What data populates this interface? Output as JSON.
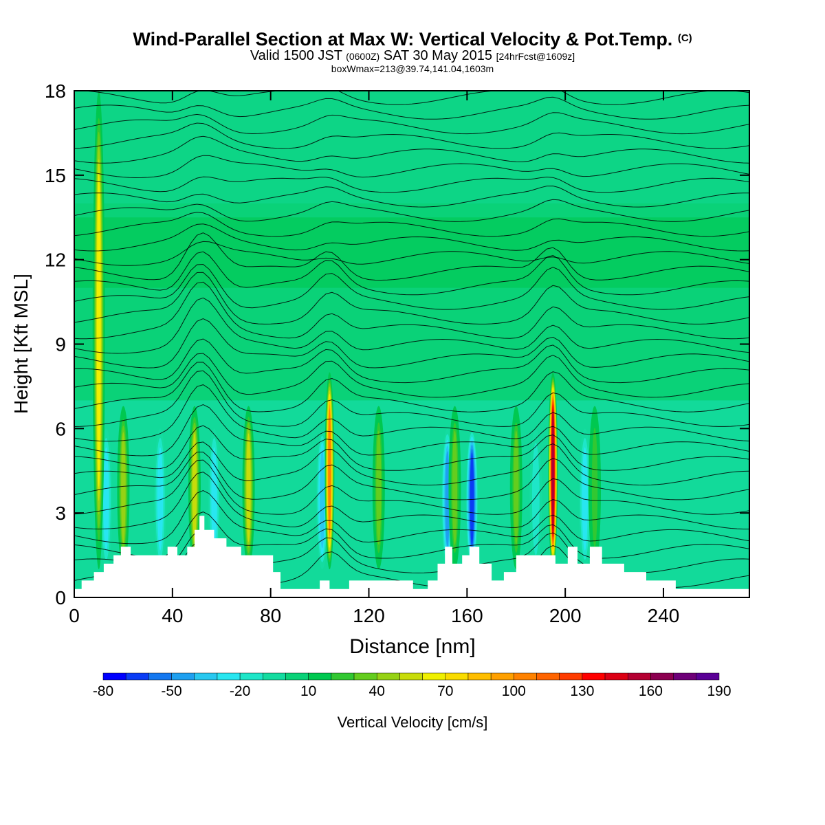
{
  "header": {
    "title": "Wind-Parallel Section at Max W: Vertical Velocity & Pot.Temp.",
    "title_mark": "(C)",
    "subtitle_main1": "Valid 1500 JST",
    "subtitle_z": "(0600Z)",
    "subtitle_main2": "SAT 30 May 2015",
    "subtitle_fcst": "[24hrFcst@1609z]",
    "subtitle2": "boxWmax=213@39.74,141.04,1603m"
  },
  "chart_data": {
    "type": "heatmap",
    "xlabel": "Distance [nm]",
    "ylabel": "Height [Kft MSL]",
    "xlim": [
      0,
      275
    ],
    "ylim": [
      0,
      18
    ],
    "xticks": [
      "0",
      "40",
      "80",
      "120",
      "160",
      "200",
      "240"
    ],
    "yticks": [
      "0",
      "3",
      "6",
      "9",
      "12",
      "15",
      "18"
    ],
    "colorbar": {
      "label": "Vertical Velocity [cm/s]",
      "tick_labels": [
        "-80",
        "-50",
        "-20",
        "10",
        "40",
        "70",
        "100",
        "130",
        "160",
        "190"
      ],
      "levels": [
        -80,
        -70,
        -60,
        -50,
        -40,
        -30,
        -20,
        -10,
        0,
        10,
        20,
        30,
        40,
        50,
        60,
        70,
        80,
        90,
        100,
        110,
        120,
        130,
        140,
        150,
        160,
        170,
        180,
        190
      ],
      "colors": [
        "#0000ff",
        "#0a3cf5",
        "#1478f0",
        "#1ea0f0",
        "#28c8f0",
        "#28e6f0",
        "#1ee6c8",
        "#14dca0",
        "#0ad278",
        "#00c850",
        "#32c832",
        "#64cd1e",
        "#96d214",
        "#c8dc0a",
        "#f0f000",
        "#fadc00",
        "#ffbe00",
        "#ffa000",
        "#ff8200",
        "#ff6400",
        "#ff3c00",
        "#ff0000",
        "#dc0014",
        "#b40032",
        "#8c0050",
        "#6e0078",
        "#5a0096"
      ]
    },
    "updrafts_cm_s": [
      {
        "x": 10,
        "w": 70
      },
      {
        "x": 20,
        "w": 50
      },
      {
        "x": 49,
        "w": 60
      },
      {
        "x": 71,
        "w": 60
      },
      {
        "x": 104,
        "w": 110
      },
      {
        "x": 124,
        "w": 40
      },
      {
        "x": 155,
        "w": 40
      },
      {
        "x": 180,
        "w": 40
      },
      {
        "x": 195,
        "w": 160
      },
      {
        "x": 212,
        "w": 30
      }
    ],
    "downdrafts_cm_s": [
      {
        "x": 13,
        "w": -30
      },
      {
        "x": 35,
        "w": -30
      },
      {
        "x": 57,
        "w": -30
      },
      {
        "x": 101,
        "w": -40
      },
      {
        "x": 152,
        "w": -50
      },
      {
        "x": 162,
        "w": -70
      },
      {
        "x": 188,
        "w": -20
      },
      {
        "x": 208,
        "w": -30
      }
    ],
    "terrain_kft": [
      [
        0,
        0.3
      ],
      [
        3,
        0.6
      ],
      [
        8,
        0.9
      ],
      [
        12,
        1.2
      ],
      [
        16,
        1.5
      ],
      [
        19,
        1.8
      ],
      [
        23,
        1.5
      ],
      [
        32,
        1.5
      ],
      [
        38,
        1.8
      ],
      [
        42,
        1.5
      ],
      [
        46,
        1.8
      ],
      [
        49,
        2.4
      ],
      [
        51,
        2.9
      ],
      [
        53,
        2.4
      ],
      [
        57,
        2.1
      ],
      [
        62,
        1.8
      ],
      [
        68,
        1.5
      ],
      [
        78,
        1.5
      ],
      [
        81,
        0.9
      ],
      [
        84,
        0.3
      ],
      [
        96,
        0.3
      ],
      [
        100,
        0.6
      ],
      [
        104,
        0.3
      ],
      [
        108,
        0.3
      ],
      [
        112,
        0.6
      ],
      [
        120,
        0.6
      ],
      [
        126,
        0.6
      ],
      [
        132,
        0.6
      ],
      [
        138,
        0.3
      ],
      [
        144,
        0.6
      ],
      [
        148,
        1.2
      ],
      [
        151,
        1.8
      ],
      [
        154,
        1.2
      ],
      [
        158,
        1.5
      ],
      [
        161,
        1.8
      ],
      [
        165,
        1.2
      ],
      [
        170,
        0.6
      ],
      [
        175,
        0.9
      ],
      [
        180,
        1.5
      ],
      [
        192,
        1.5
      ],
      [
        196,
        1.2
      ],
      [
        201,
        1.8
      ],
      [
        205,
        1.2
      ],
      [
        210,
        1.8
      ],
      [
        215,
        1.2
      ],
      [
        224,
        0.9
      ],
      [
        233,
        0.6
      ],
      [
        240,
        0.6
      ],
      [
        245,
        0.3
      ],
      [
        275,
        0.3
      ]
    ]
  }
}
